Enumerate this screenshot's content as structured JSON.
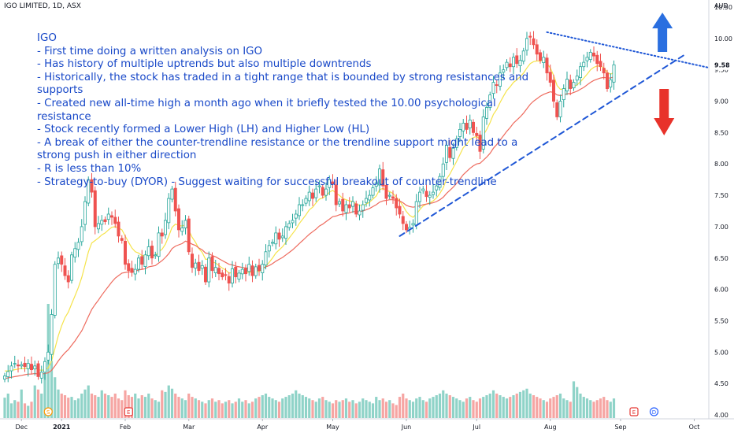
{
  "header": {
    "symbol": "IGO LIMITED, 1D, ASX",
    "currency": "AUD"
  },
  "annotation": {
    "title": "IGO",
    "lines": [
      "- First time doing a written analysis on IGO",
      "- Has history of multiple uptrends but also multiple downtrends",
      "- Historically, the stock has traded in a tight range that is bounded by strong resistances and supports",
      "- Created new all-time high a month ago when it briefly tested the 10.00 psychological resistance",
      "- Stock recently formed a Lower High (LH) and Higher Low (HL)",
      "- A break of either the counter-trendline resistance or the trendline support might lead to a strong push in either direction",
      "- R is less than 10%",
      "- Strategy-to-buy (DYOR) - Suggest waiting for successful breakout of counter-trendline"
    ]
  },
  "colors": {
    "up": "#26a69a",
    "down": "#ef5350",
    "vol_up": "#8fd3c8",
    "vol_down": "#f6a5a3",
    "ma_fast": "#f5e34a",
    "ma_slow": "#ee6b5e",
    "trend": "#1f57d6",
    "arrow_up": "#2a6fe0",
    "arrow_down": "#e8322a"
  },
  "chart_data": {
    "type": "candlestick",
    "title": "IGO LIMITED, 1D, ASX",
    "currency": "AUD",
    "ylim": [
      3.95,
      10.6
    ],
    "y_ticks": [
      "4.00",
      "4.50",
      "5.00",
      "5.50",
      "6.00",
      "6.50",
      "7.00",
      "7.50",
      "8.00",
      "8.50",
      "9.00",
      "9.50",
      "10.00",
      "10.50"
    ],
    "last_price": "9.58",
    "x_ticks": [
      "Dec",
      "2021",
      "Feb",
      "Mar",
      "Apr",
      "May",
      "Jun",
      "Jul",
      "Aug",
      "Sep",
      "Oct"
    ],
    "x_tick_index": [
      5,
      17,
      36,
      55,
      77,
      98,
      120,
      141,
      163,
      184,
      206
    ],
    "event_badges": [
      {
        "label": "S",
        "index": 13,
        "color": "#ff9800"
      },
      {
        "label": "E",
        "index": 37,
        "color": "#e53935"
      },
      {
        "label": "E",
        "index": 188,
        "color": "#e53935"
      },
      {
        "label": "D",
        "index": 194,
        "color": "#2962ff"
      }
    ],
    "series": [
      {
        "name": "",
        "kind": "ohlc",
        "close": [
          4.62,
          4.69,
          4.78,
          4.82,
          4.78,
          4.8,
          4.77,
          4.82,
          4.72,
          4.78,
          4.61,
          4.68,
          4.85,
          5.0,
          5.6,
          6.4,
          6.5,
          6.4,
          6.22,
          6.12,
          6.55,
          6.65,
          6.75,
          7.0,
          7.4,
          7.75,
          7.55,
          7.0,
          7.05,
          7.1,
          7.08,
          7.2,
          7.15,
          7.05,
          6.85,
          6.78,
          6.4,
          6.3,
          6.27,
          6.32,
          6.5,
          6.4,
          6.55,
          6.68,
          6.5,
          6.55,
          6.9,
          6.85,
          7.1,
          7.45,
          7.6,
          7.25,
          6.95,
          6.98,
          7.1,
          6.6,
          6.35,
          6.42,
          6.3,
          6.38,
          6.12,
          6.5,
          6.3,
          6.35,
          6.25,
          6.2,
          6.23,
          6.1,
          6.33,
          6.2,
          6.26,
          6.32,
          6.25,
          6.4,
          6.22,
          6.36,
          6.3,
          6.4,
          6.6,
          6.7,
          6.75,
          6.9,
          6.8,
          6.85,
          7.0,
          7.05,
          7.1,
          7.2,
          7.35,
          7.35,
          7.45,
          7.55,
          7.45,
          7.6,
          7.65,
          7.5,
          7.6,
          7.75,
          7.68,
          7.35,
          7.4,
          7.25,
          7.35,
          7.3,
          7.4,
          7.2,
          7.25,
          7.35,
          7.45,
          7.5,
          7.62,
          7.7,
          7.92,
          7.65,
          7.45,
          7.5,
          7.45,
          7.3,
          7.2,
          7.05,
          6.95,
          6.99,
          7.05,
          7.4,
          7.55,
          7.6,
          7.48,
          7.5,
          7.55,
          7.65,
          7.8,
          8.0,
          8.3,
          8.1,
          8.25,
          8.4,
          8.55,
          8.65,
          8.55,
          8.7,
          8.5,
          8.45,
          8.2,
          8.75,
          8.9,
          9.1,
          9.3,
          9.25,
          9.45,
          9.5,
          9.62,
          9.55,
          9.7,
          9.6,
          9.65,
          9.8,
          10.0,
          10.02,
          9.9,
          9.75,
          9.65,
          9.7,
          9.45,
          9.3,
          9.0,
          8.75,
          9.0,
          9.2,
          9.35,
          9.2,
          9.3,
          9.4,
          9.55,
          9.62,
          9.7,
          9.78,
          9.72,
          9.6,
          9.55,
          9.45,
          9.2,
          9.34,
          9.58
        ]
      },
      {
        "name": "",
        "kind": "moving-average",
        "values": [
          4.7,
          4.7,
          4.71,
          4.72,
          4.73,
          4.74,
          4.74,
          4.75,
          4.75,
          4.75,
          4.72,
          4.71,
          4.72,
          4.75,
          4.86,
          5.06,
          5.26,
          5.42,
          5.55,
          5.64,
          5.77,
          5.9,
          6.03,
          6.19,
          6.39,
          6.6,
          6.74,
          6.78,
          6.82,
          6.87,
          6.9,
          6.95,
          6.99,
          7.0,
          6.98,
          6.95,
          6.85,
          6.75,
          6.66,
          6.6,
          6.58,
          6.54,
          6.54,
          6.56,
          6.54,
          6.54,
          6.6,
          6.64,
          6.72,
          6.85,
          6.99,
          7.04,
          7.02,
          7.01,
          7.03,
          6.94,
          6.83,
          6.75,
          6.65,
          6.59,
          6.48,
          6.48,
          6.44,
          6.42,
          6.38,
          6.34,
          6.31,
          6.26,
          6.27,
          6.25,
          6.25,
          6.26,
          6.26,
          6.28,
          6.27,
          6.28,
          6.29,
          6.31,
          6.37,
          6.43,
          6.5,
          6.58,
          6.63,
          6.68,
          6.75,
          6.82,
          6.89,
          6.96,
          7.05,
          7.12,
          7.19,
          7.27,
          7.31,
          7.38,
          7.44,
          7.46,
          7.49,
          7.55,
          7.58,
          7.53,
          7.5,
          7.45,
          7.43,
          7.41,
          7.4,
          7.36,
          7.34,
          7.34,
          7.36,
          7.39,
          7.44,
          7.49,
          7.59,
          7.61,
          7.58,
          7.56,
          7.53,
          7.47,
          7.41,
          7.33,
          7.24,
          7.18,
          7.15,
          7.2,
          7.27,
          7.33,
          7.36,
          7.38,
          7.41,
          7.46,
          7.53,
          7.62,
          7.76,
          7.84,
          7.94,
          8.04,
          8.15,
          8.26,
          8.31,
          8.39,
          8.42,
          8.44,
          8.39,
          8.46,
          8.55,
          8.66,
          8.79,
          8.87,
          8.98,
          9.08,
          9.17,
          9.23,
          9.3,
          9.34,
          9.39,
          9.45,
          9.53,
          9.6,
          9.63,
          9.64,
          9.64,
          9.65,
          9.6,
          9.53,
          9.41,
          9.25,
          9.19,
          9.19,
          9.22,
          9.21,
          9.23,
          9.26,
          9.31,
          9.37,
          9.43,
          9.5,
          9.54,
          9.56,
          9.56,
          9.53,
          9.46,
          9.43,
          9.46
        ]
      },
      {
        "name": "",
        "kind": "moving-average",
        "values": [
          4.58,
          4.59,
          4.6,
          4.61,
          4.62,
          4.63,
          4.64,
          4.65,
          4.65,
          4.66,
          4.65,
          4.65,
          4.66,
          4.67,
          4.71,
          4.78,
          4.86,
          4.93,
          4.99,
          5.04,
          5.11,
          5.18,
          5.26,
          5.34,
          5.45,
          5.57,
          5.68,
          5.76,
          5.83,
          5.91,
          5.98,
          6.05,
          6.12,
          6.18,
          6.22,
          6.26,
          6.27,
          6.28,
          6.28,
          6.29,
          6.31,
          6.32,
          6.33,
          6.36,
          6.37,
          6.38,
          6.42,
          6.46,
          6.51,
          6.57,
          6.65,
          6.69,
          6.71,
          6.73,
          6.77,
          6.75,
          6.72,
          6.7,
          6.66,
          6.63,
          6.58,
          6.57,
          6.54,
          6.52,
          6.49,
          6.46,
          6.43,
          6.4,
          6.39,
          6.37,
          6.36,
          6.35,
          6.34,
          6.34,
          6.33,
          6.33,
          6.33,
          6.34,
          6.36,
          6.38,
          6.41,
          6.45,
          6.48,
          6.51,
          6.55,
          6.59,
          6.63,
          6.68,
          6.73,
          6.78,
          6.83,
          6.88,
          6.92,
          6.96,
          7.01,
          7.04,
          7.08,
          7.12,
          7.16,
          7.17,
          7.19,
          7.2,
          7.21,
          7.22,
          7.24,
          7.24,
          7.24,
          7.25,
          7.27,
          7.29,
          7.32,
          7.35,
          7.39,
          7.41,
          7.42,
          7.43,
          7.43,
          7.42,
          7.41,
          7.38,
          7.34,
          7.32,
          7.31,
          7.32,
          7.33,
          7.35,
          7.36,
          7.37,
          7.38,
          7.4,
          7.43,
          7.47,
          7.53,
          7.58,
          7.63,
          7.69,
          7.76,
          7.83,
          7.88,
          7.93,
          7.97,
          8.0,
          8.01,
          8.06,
          8.11,
          8.17,
          8.25,
          8.31,
          8.38,
          8.45,
          8.52,
          8.58,
          8.65,
          8.7,
          8.75,
          8.81,
          8.88,
          8.95,
          9.0,
          9.04,
          9.08,
          9.11,
          9.13,
          9.15,
          9.14,
          9.1,
          9.09,
          9.1,
          9.12,
          9.12,
          9.14,
          9.16,
          9.19,
          9.22,
          9.26,
          9.3,
          9.33,
          9.35,
          9.37,
          9.38,
          9.37,
          9.37,
          9.39
        ]
      },
      {
        "name": "",
        "kind": "volume",
        "values": [
          25,
          30,
          18,
          22,
          20,
          35,
          18,
          15,
          20,
          40,
          35,
          30,
          55,
          140,
          70,
          50,
          35,
          30,
          28,
          25,
          26,
          22,
          24,
          30,
          35,
          40,
          30,
          28,
          26,
          34,
          30,
          28,
          26,
          30,
          24,
          22,
          34,
          28,
          26,
          30,
          24,
          28,
          26,
          30,
          24,
          22,
          20,
          34,
          32,
          40,
          36,
          30,
          26,
          24,
          22,
          30,
          26,
          24,
          22,
          20,
          18,
          22,
          24,
          20,
          22,
          18,
          20,
          22,
          18,
          20,
          24,
          20,
          22,
          18,
          20,
          24,
          26,
          28,
          30,
          26,
          24,
          22,
          20,
          24,
          26,
          28,
          30,
          34,
          30,
          28,
          26,
          24,
          22,
          20,
          24,
          26,
          22,
          20,
          18,
          22,
          20,
          22,
          24,
          20,
          22,
          18,
          20,
          24,
          22,
          20,
          18,
          26,
          22,
          24,
          20,
          22,
          18,
          16,
          26,
          30,
          24,
          22,
          20,
          24,
          26,
          22,
          20,
          24,
          26,
          28,
          30,
          34,
          30,
          28,
          26,
          24,
          22,
          20,
          24,
          26,
          22,
          20,
          24,
          26,
          28,
          30,
          34,
          30,
          28,
          26,
          24,
          26,
          28,
          30,
          32,
          34,
          36,
          30,
          28,
          26,
          24,
          22,
          20,
          24,
          26,
          28,
          30,
          24,
          22,
          20,
          45,
          38,
          30,
          26,
          24,
          22,
          20,
          22,
          24,
          26,
          22,
          20,
          24,
          26,
          22,
          24
        ]
      }
    ],
    "trendlines": [
      {
        "name": "counter-trendline resistance",
        "style": "dotted",
        "from": {
          "index": 162,
          "value": 10.1
        },
        "to": {
          "index": 203,
          "value": 9.62
        }
      },
      {
        "name": "trendline support",
        "style": "dashed",
        "from": {
          "index": 118,
          "value": 6.85
        },
        "to": {
          "index": 199,
          "value": 9.6
        }
      }
    ],
    "arrows": [
      {
        "direction": "up",
        "index": 196.5
      },
      {
        "direction": "down",
        "index": 197
      }
    ]
  }
}
